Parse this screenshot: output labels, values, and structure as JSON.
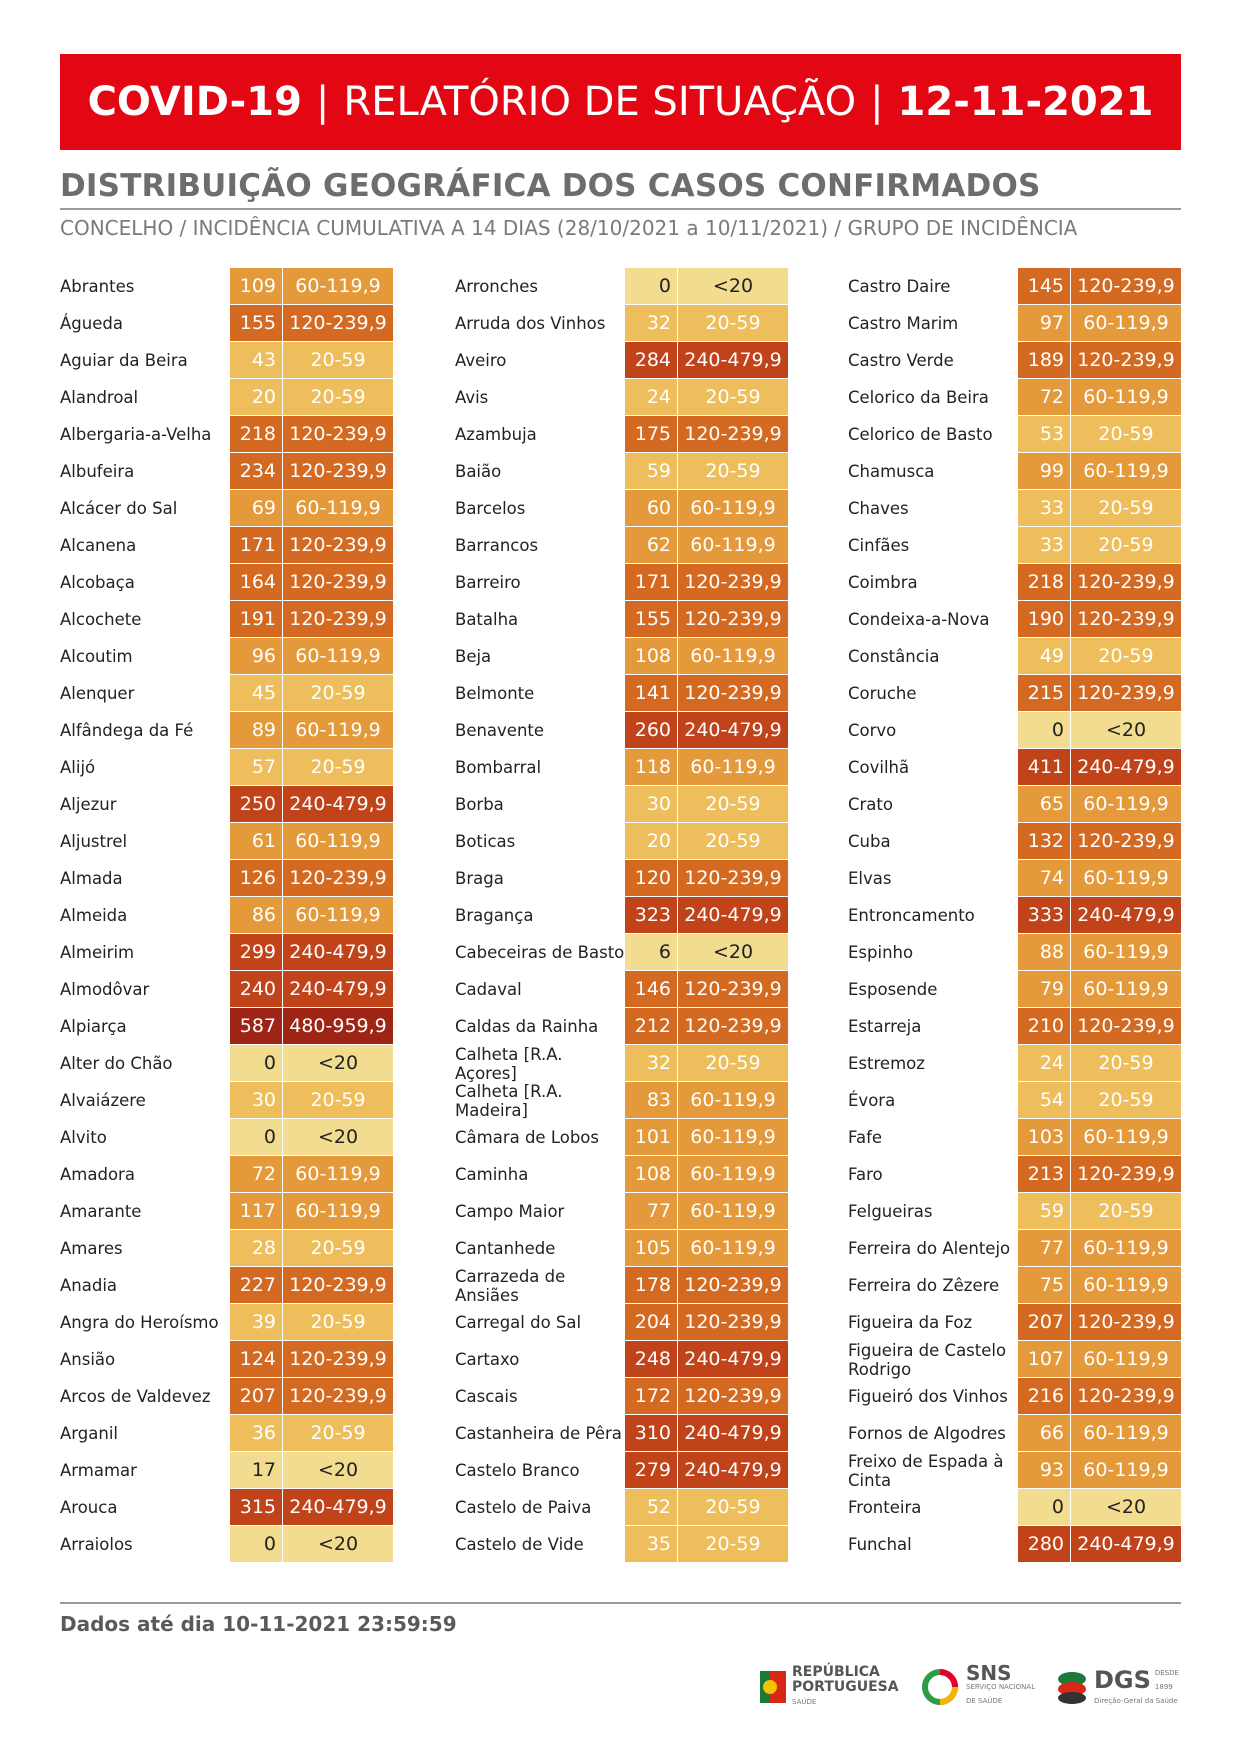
{
  "header": {
    "part1": "COVID-19",
    "sep": "|",
    "part2": "RELATÓRIO DE SITUAÇÃO",
    "part3": "12-11-2021"
  },
  "subtitle": "DISTRIBUIÇÃO GEOGRÁFICA DOS CASOS CONFIRMADOS",
  "subsubtitle": "CONCELHO / INCIDÊNCIA CUMULATIVA A 14 DIAS (28/10/2021 a 10/11/2021) / GRUPO DE INCIDÊNCIA",
  "group_colors": {
    "<20": "#f2dc8f",
    "20-59": "#eebe5c",
    "60-119,9": "#e49a3a",
    "120-239,9": "#d46a21",
    "240-479,9": "#c0431a",
    "480-959,9": "#9e2416"
  },
  "columns": [
    [
      {
        "name": "Abrantes",
        "value": "109",
        "group": "60-119,9"
      },
      {
        "name": "Águeda",
        "value": "155",
        "group": "120-239,9"
      },
      {
        "name": "Aguiar da Beira",
        "value": "43",
        "group": "20-59"
      },
      {
        "name": "Alandroal",
        "value": "20",
        "group": "20-59"
      },
      {
        "name": "Albergaria-a-Velha",
        "value": "218",
        "group": "120-239,9"
      },
      {
        "name": "Albufeira",
        "value": "234",
        "group": "120-239,9"
      },
      {
        "name": "Alcácer do Sal",
        "value": "69",
        "group": "60-119,9"
      },
      {
        "name": "Alcanena",
        "value": "171",
        "group": "120-239,9"
      },
      {
        "name": "Alcobaça",
        "value": "164",
        "group": "120-239,9"
      },
      {
        "name": "Alcochete",
        "value": "191",
        "group": "120-239,9"
      },
      {
        "name": "Alcoutim",
        "value": "96",
        "group": "60-119,9"
      },
      {
        "name": "Alenquer",
        "value": "45",
        "group": "20-59"
      },
      {
        "name": "Alfândega da Fé",
        "value": "89",
        "group": "60-119,9"
      },
      {
        "name": "Alijó",
        "value": "57",
        "group": "20-59"
      },
      {
        "name": "Aljezur",
        "value": "250",
        "group": "240-479,9"
      },
      {
        "name": "Aljustrel",
        "value": "61",
        "group": "60-119,9"
      },
      {
        "name": "Almada",
        "value": "126",
        "group": "120-239,9"
      },
      {
        "name": "Almeida",
        "value": "86",
        "group": "60-119,9"
      },
      {
        "name": "Almeirim",
        "value": "299",
        "group": "240-479,9"
      },
      {
        "name": "Almodôvar",
        "value": "240",
        "group": "240-479,9"
      },
      {
        "name": "Alpiarça",
        "value": "587",
        "group": "480-959,9"
      },
      {
        "name": "Alter do Chão",
        "value": "0",
        "group": "<20"
      },
      {
        "name": "Alvaiázere",
        "value": "30",
        "group": "20-59"
      },
      {
        "name": "Alvito",
        "value": "0",
        "group": "<20"
      },
      {
        "name": "Amadora",
        "value": "72",
        "group": "60-119,9"
      },
      {
        "name": "Amarante",
        "value": "117",
        "group": "60-119,9"
      },
      {
        "name": "Amares",
        "value": "28",
        "group": "20-59"
      },
      {
        "name": "Anadia",
        "value": "227",
        "group": "120-239,9"
      },
      {
        "name": "Angra do Heroísmo",
        "value": "39",
        "group": "20-59"
      },
      {
        "name": "Ansião",
        "value": "124",
        "group": "120-239,9"
      },
      {
        "name": "Arcos de Valdevez",
        "value": "207",
        "group": "120-239,9"
      },
      {
        "name": "Arganil",
        "value": "36",
        "group": "20-59"
      },
      {
        "name": "Armamar",
        "value": "17",
        "group": "<20"
      },
      {
        "name": "Arouca",
        "value": "315",
        "group": "240-479,9"
      },
      {
        "name": "Arraiolos",
        "value": "0",
        "group": "<20"
      }
    ],
    [
      {
        "name": "Arronches",
        "value": "0",
        "group": "<20"
      },
      {
        "name": "Arruda dos Vinhos",
        "value": "32",
        "group": "20-59"
      },
      {
        "name": "Aveiro",
        "value": "284",
        "group": "240-479,9"
      },
      {
        "name": "Avis",
        "value": "24",
        "group": "20-59"
      },
      {
        "name": "Azambuja",
        "value": "175",
        "group": "120-239,9"
      },
      {
        "name": "Baião",
        "value": "59",
        "group": "20-59"
      },
      {
        "name": "Barcelos",
        "value": "60",
        "group": "60-119,9"
      },
      {
        "name": "Barrancos",
        "value": "62",
        "group": "60-119,9"
      },
      {
        "name": "Barreiro",
        "value": "171",
        "group": "120-239,9"
      },
      {
        "name": "Batalha",
        "value": "155",
        "group": "120-239,9"
      },
      {
        "name": "Beja",
        "value": "108",
        "group": "60-119,9"
      },
      {
        "name": "Belmonte",
        "value": "141",
        "group": "120-239,9"
      },
      {
        "name": "Benavente",
        "value": "260",
        "group": "240-479,9"
      },
      {
        "name": "Bombarral",
        "value": "118",
        "group": "60-119,9"
      },
      {
        "name": "Borba",
        "value": "30",
        "group": "20-59"
      },
      {
        "name": "Boticas",
        "value": "20",
        "group": "20-59"
      },
      {
        "name": "Braga",
        "value": "120",
        "group": "120-239,9"
      },
      {
        "name": "Bragança",
        "value": "323",
        "group": "240-479,9"
      },
      {
        "name": "Cabeceiras de Basto",
        "value": "6",
        "group": "<20"
      },
      {
        "name": "Cadaval",
        "value": "146",
        "group": "120-239,9"
      },
      {
        "name": "Caldas da Rainha",
        "value": "212",
        "group": "120-239,9"
      },
      {
        "name": "Calheta [R.A. Açores]",
        "value": "32",
        "group": "20-59"
      },
      {
        "name": "Calheta [R.A. Madeira]",
        "value": "83",
        "group": "60-119,9"
      },
      {
        "name": "Câmara de Lobos",
        "value": "101",
        "group": "60-119,9"
      },
      {
        "name": "Caminha",
        "value": "108",
        "group": "60-119,9"
      },
      {
        "name": "Campo Maior",
        "value": "77",
        "group": "60-119,9"
      },
      {
        "name": "Cantanhede",
        "value": "105",
        "group": "60-119,9"
      },
      {
        "name": "Carrazeda de Ansiães",
        "value": "178",
        "group": "120-239,9"
      },
      {
        "name": "Carregal do Sal",
        "value": "204",
        "group": "120-239,9"
      },
      {
        "name": "Cartaxo",
        "value": "248",
        "group": "240-479,9"
      },
      {
        "name": "Cascais",
        "value": "172",
        "group": "120-239,9"
      },
      {
        "name": "Castanheira de Pêra",
        "value": "310",
        "group": "240-479,9"
      },
      {
        "name": "Castelo Branco",
        "value": "279",
        "group": "240-479,9"
      },
      {
        "name": "Castelo de Paiva",
        "value": "52",
        "group": "20-59"
      },
      {
        "name": "Castelo de Vide",
        "value": "35",
        "group": "20-59"
      }
    ],
    [
      {
        "name": "Castro Daire",
        "value": "145",
        "group": "120-239,9"
      },
      {
        "name": "Castro Marim",
        "value": "97",
        "group": "60-119,9"
      },
      {
        "name": "Castro Verde",
        "value": "189",
        "group": "120-239,9"
      },
      {
        "name": "Celorico da Beira",
        "value": "72",
        "group": "60-119,9"
      },
      {
        "name": "Celorico de Basto",
        "value": "53",
        "group": "20-59"
      },
      {
        "name": "Chamusca",
        "value": "99",
        "group": "60-119,9"
      },
      {
        "name": "Chaves",
        "value": "33",
        "group": "20-59"
      },
      {
        "name": "Cinfães",
        "value": "33",
        "group": "20-59"
      },
      {
        "name": "Coimbra",
        "value": "218",
        "group": "120-239,9"
      },
      {
        "name": "Condeixa-a-Nova",
        "value": "190",
        "group": "120-239,9"
      },
      {
        "name": "Constância",
        "value": "49",
        "group": "20-59"
      },
      {
        "name": "Coruche",
        "value": "215",
        "group": "120-239,9"
      },
      {
        "name": "Corvo",
        "value": "0",
        "group": "<20"
      },
      {
        "name": "Covilhã",
        "value": "411",
        "group": "240-479,9"
      },
      {
        "name": "Crato",
        "value": "65",
        "group": "60-119,9"
      },
      {
        "name": "Cuba",
        "value": "132",
        "group": "120-239,9"
      },
      {
        "name": "Elvas",
        "value": "74",
        "group": "60-119,9"
      },
      {
        "name": "Entroncamento",
        "value": "333",
        "group": "240-479,9"
      },
      {
        "name": "Espinho",
        "value": "88",
        "group": "60-119,9"
      },
      {
        "name": "Esposende",
        "value": "79",
        "group": "60-119,9"
      },
      {
        "name": "Estarreja",
        "value": "210",
        "group": "120-239,9"
      },
      {
        "name": "Estremoz",
        "value": "24",
        "group": "20-59"
      },
      {
        "name": "Évora",
        "value": "54",
        "group": "20-59"
      },
      {
        "name": "Fafe",
        "value": "103",
        "group": "60-119,9"
      },
      {
        "name": "Faro",
        "value": "213",
        "group": "120-239,9"
      },
      {
        "name": "Felgueiras",
        "value": "59",
        "group": "20-59"
      },
      {
        "name": "Ferreira do Alentejo",
        "value": "77",
        "group": "60-119,9"
      },
      {
        "name": "Ferreira do Zêzere",
        "value": "75",
        "group": "60-119,9"
      },
      {
        "name": "Figueira da Foz",
        "value": "207",
        "group": "120-239,9"
      },
      {
        "name": "Figueira de Castelo Rodrigo",
        "value": "107",
        "group": "60-119,9"
      },
      {
        "name": "Figueiró dos Vinhos",
        "value": "216",
        "group": "120-239,9"
      },
      {
        "name": "Fornos de Algodres",
        "value": "66",
        "group": "60-119,9"
      },
      {
        "name": "Freixo de Espada à Cinta",
        "value": "93",
        "group": "60-119,9"
      },
      {
        "name": "Fronteira",
        "value": "0",
        "group": "<20"
      },
      {
        "name": "Funchal",
        "value": "280",
        "group": "240-479,9"
      }
    ]
  ],
  "footer": "Dados até dia 10-11-2021 23:59:59",
  "logos": {
    "rp_line1": "REPÚBLICA",
    "rp_line2": "PORTUGUESA",
    "rp_line3": "SAÚDE",
    "sns_main": "SNS",
    "sns_sub": "SERVIÇO NACIONAL DE SAÚDE",
    "dgs_main": "DGS",
    "dgs_sub": "Direção-Geral da Saúde",
    "dgs_year": "DESDE 1899"
  }
}
